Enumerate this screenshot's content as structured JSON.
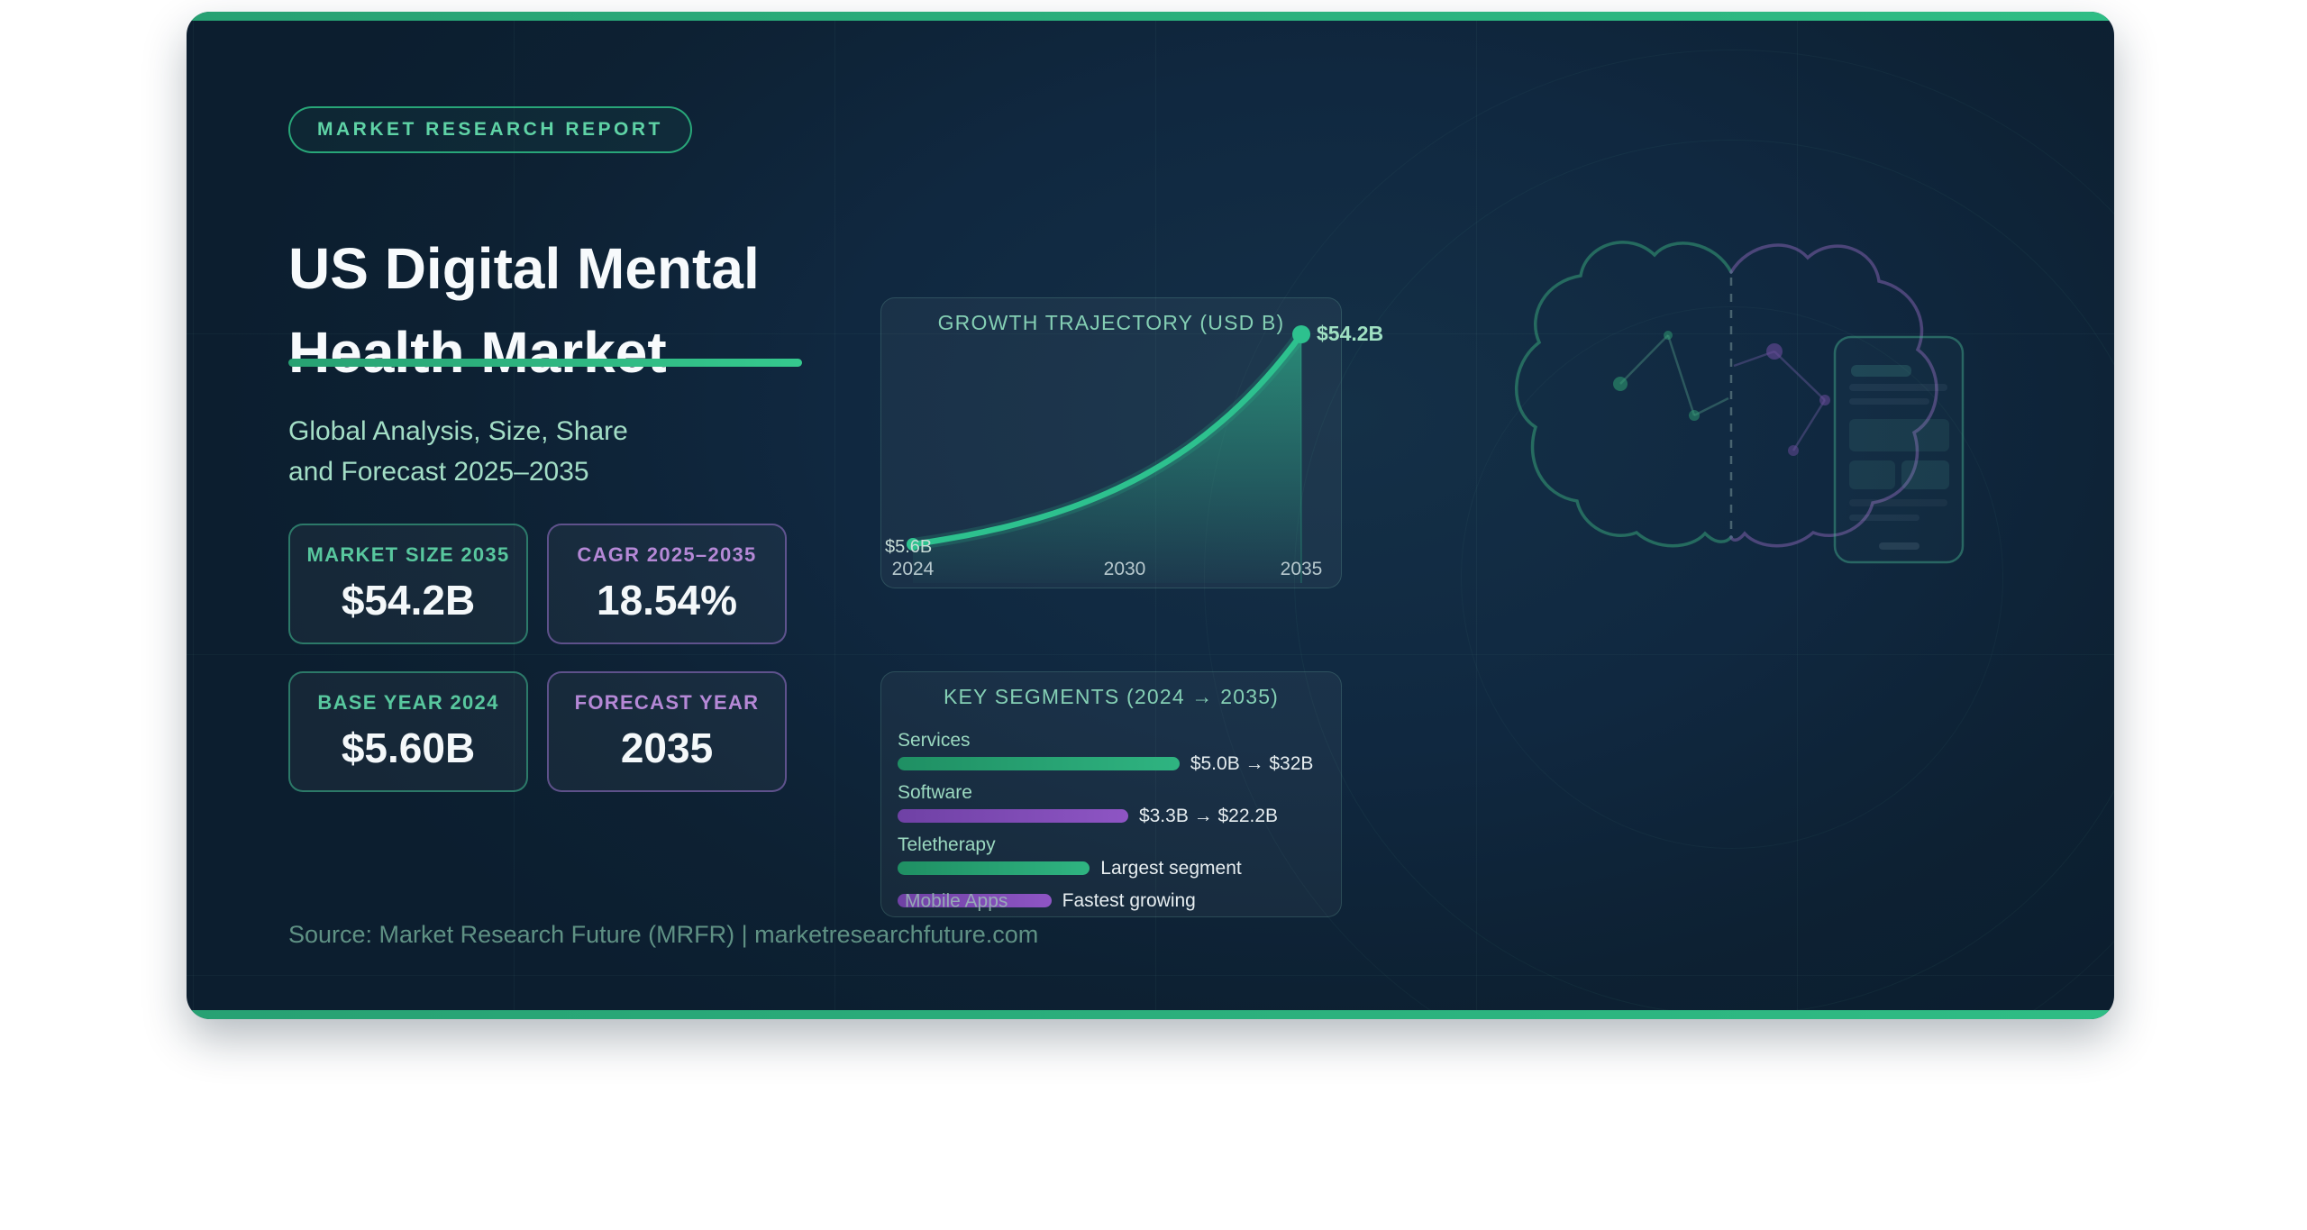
{
  "colors": {
    "accent_green": "#2fbd85",
    "accent_purple": "#8e55c4",
    "background_navy": "#0f2537",
    "mint_text": "#a3dec6",
    "page_background": "#ffffff"
  },
  "badge": {
    "label": "MARKET RESEARCH REPORT"
  },
  "title": {
    "line1": "US Digital Mental",
    "line2": "Health Market"
  },
  "subtitle": {
    "line1": "Global Analysis, Size, Share",
    "line2": "and Forecast 2025–2035"
  },
  "stats": {
    "cards": [
      {
        "label": "MARKET SIZE 2035",
        "value": "$54.2B",
        "theme": "green"
      },
      {
        "label": "CAGR 2025–2035",
        "value": "18.54%",
        "theme": "purple"
      },
      {
        "label": "BASE YEAR 2024",
        "value": "$5.60B",
        "theme": "green"
      },
      {
        "label": "FORECAST YEAR",
        "value": "2035",
        "theme": "purple"
      }
    ]
  },
  "chart_data": [
    {
      "type": "area-line",
      "title": "GROWTH TRAJECTORY (USD B)",
      "series": [
        {
          "name": "US digital mental health market size (USD B)",
          "x": [
            2024,
            2035
          ],
          "values": [
            5.6,
            54.2
          ]
        }
      ],
      "x_ticks": [
        "2024",
        "2030",
        "2035"
      ],
      "xlim": [
        2024,
        2035
      ],
      "ylim": [
        0,
        58
      ],
      "interpolation": "exponential",
      "grid": false,
      "legend": "none",
      "line_color": "#2dc18e",
      "point_labels": {
        "start": "$5.6B",
        "end": "$54.2B"
      }
    },
    {
      "type": "bar",
      "orientation": "horizontal",
      "title": "KEY SEGMENTS (2024 → 2035)",
      "categories": [
        "Services",
        "Software",
        "Teletherapy",
        "Mobile Apps"
      ],
      "bars": [
        {
          "label": "Services",
          "annotation": "$5.0B → $32B",
          "color_theme": "green",
          "length_pct": 66,
          "label_on_bar": false
        },
        {
          "label": "Software",
          "annotation": "$3.3B → $22.2B",
          "color_theme": "purple",
          "length_pct": 54,
          "label_on_bar": false
        },
        {
          "label": "Teletherapy",
          "annotation": "Largest segment",
          "color_theme": "green",
          "length_pct": 45,
          "label_on_bar": false
        },
        {
          "label": "Mobile Apps",
          "annotation": "Fastest growing",
          "color_theme": "purple",
          "length_pct": 36,
          "label_on_bar": true
        }
      ]
    }
  ],
  "source": {
    "text": "Source: Market Research Future (MRFR) | marketresearchfuture.com"
  }
}
